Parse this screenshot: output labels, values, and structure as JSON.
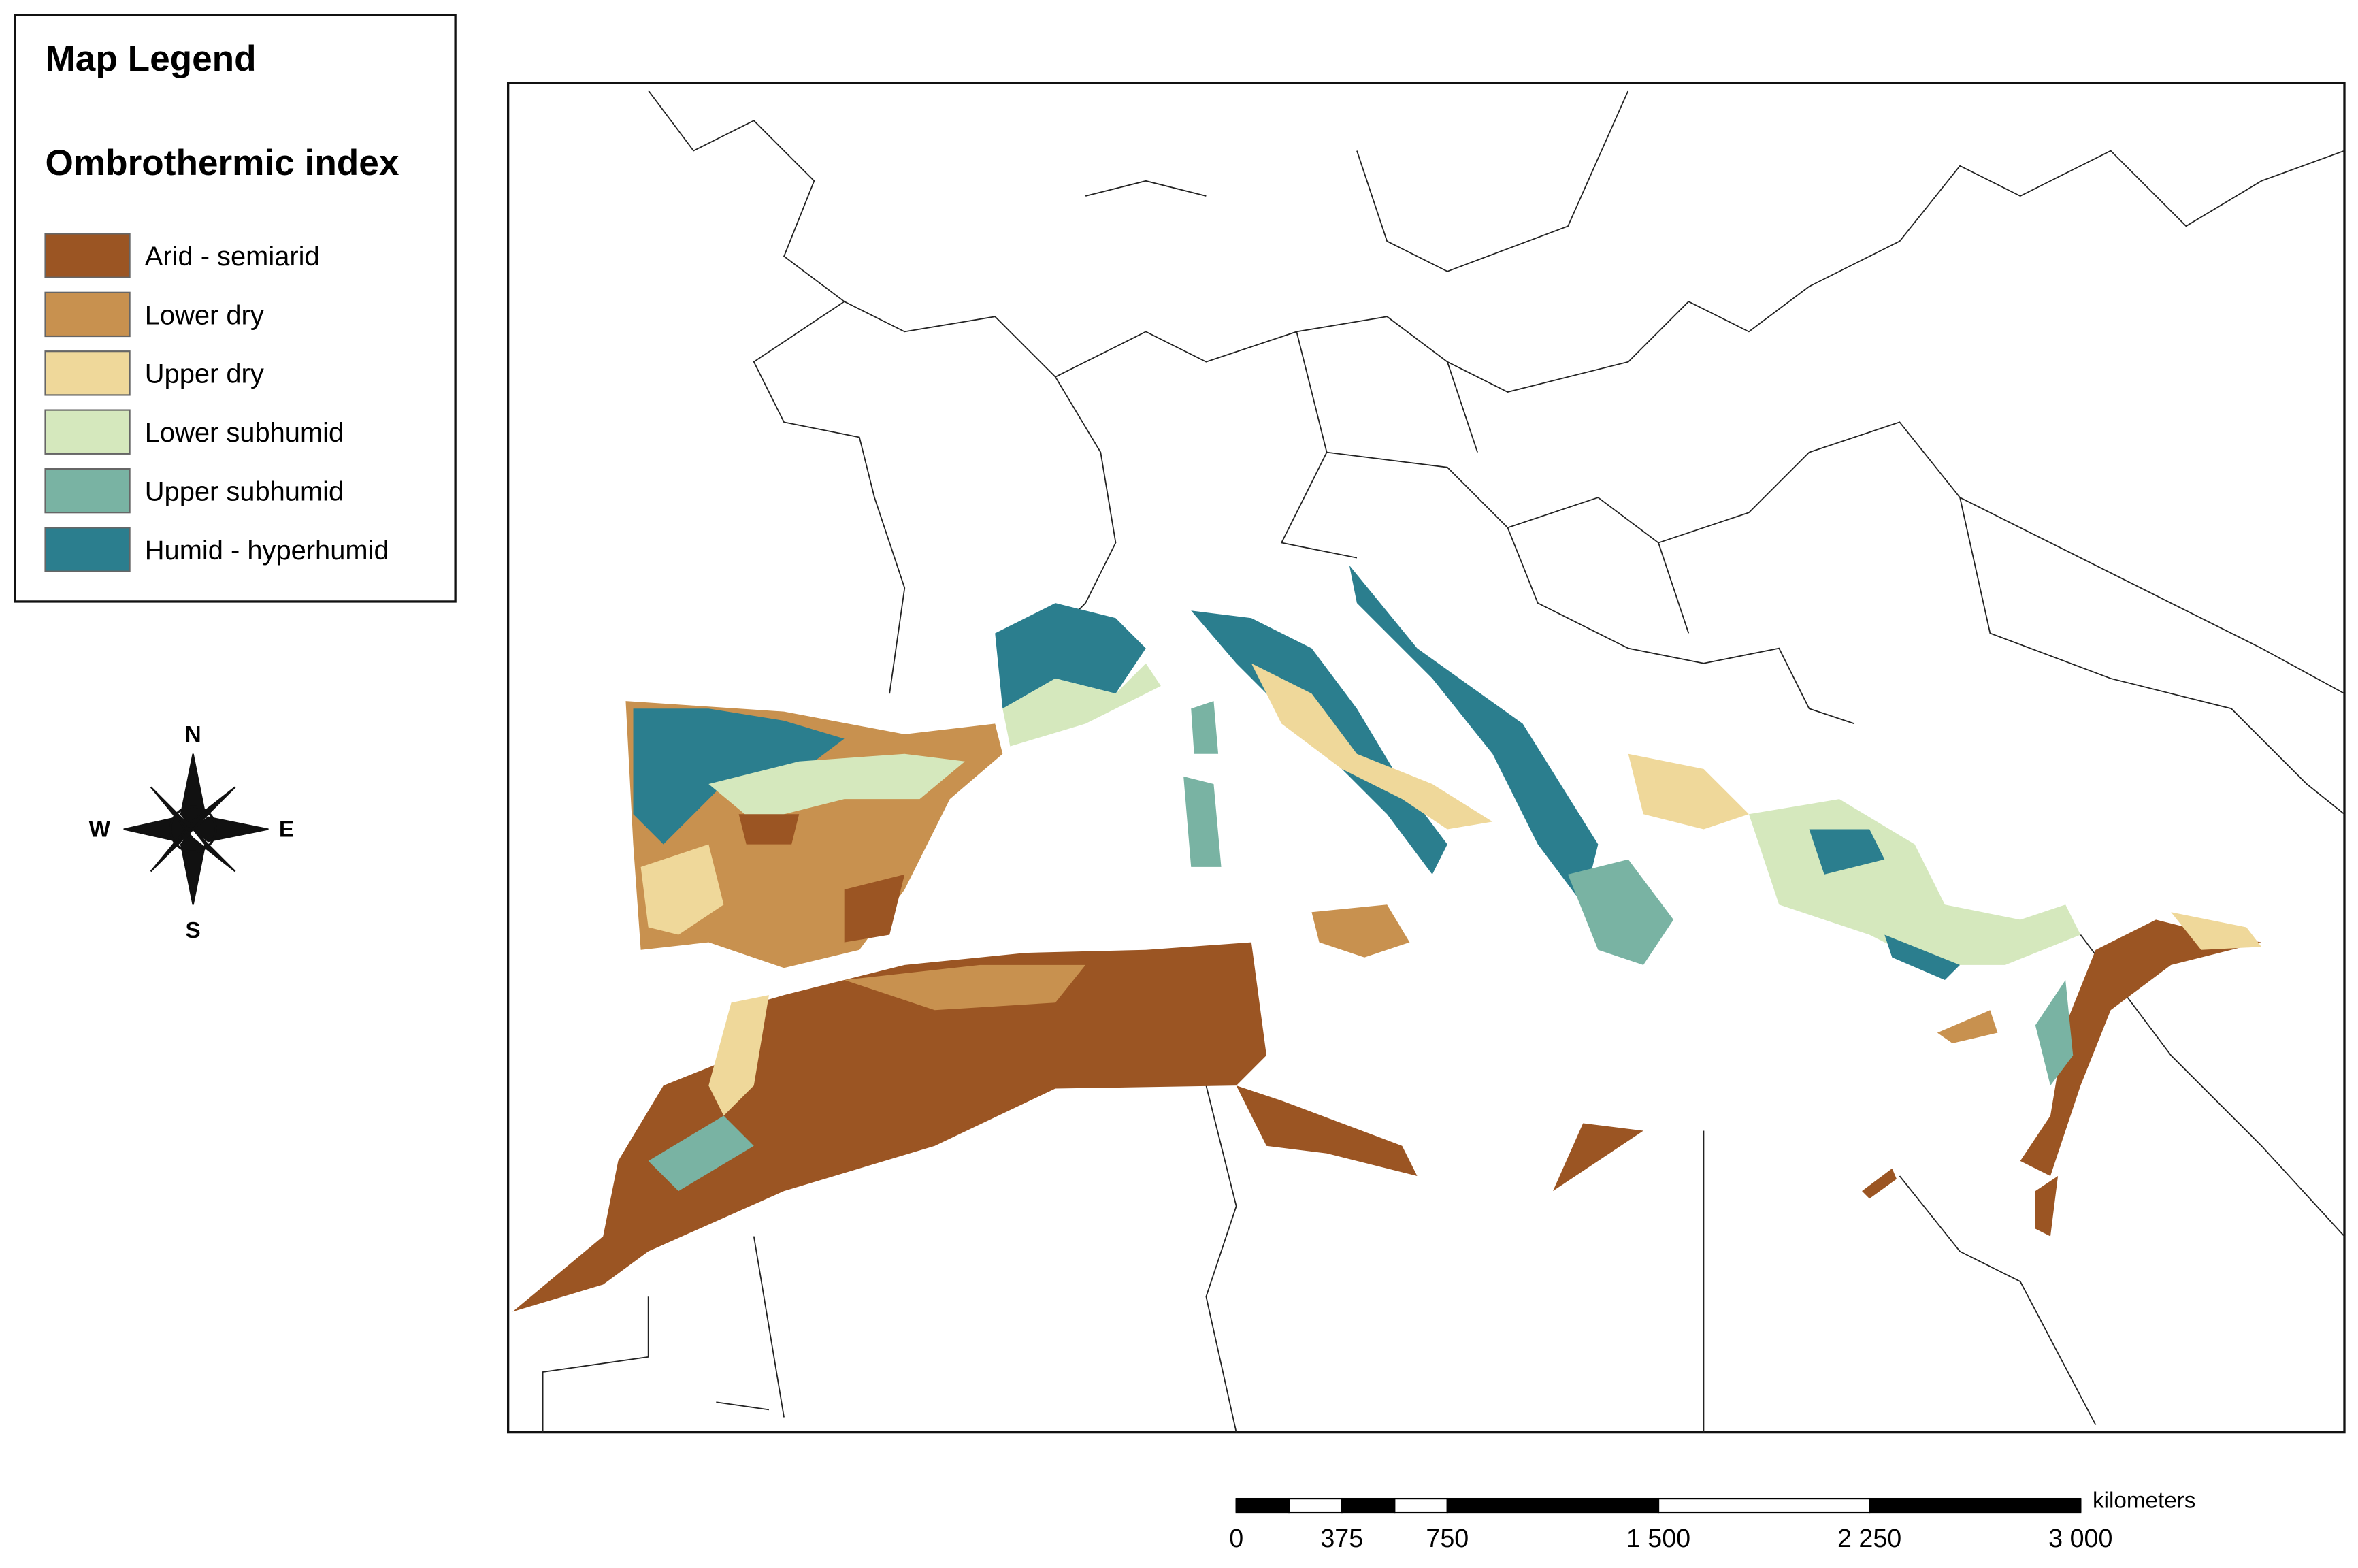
{
  "legend": {
    "title": "Map Legend",
    "subtitle": "Ombrothermic index",
    "items": [
      {
        "label": "Arid - semiarid",
        "color": "#9b5523"
      },
      {
        "label": "Lower dry",
        "color": "#c8914f"
      },
      {
        "label": "Upper dry",
        "color": "#efd89a"
      },
      {
        "label": "Lower subhumid",
        "color": "#d5e8bd"
      },
      {
        "label": "Upper subhumid",
        "color": "#79b3a3"
      },
      {
        "label": "Humid - hyperhumid",
        "color": "#2b7e8e"
      }
    ]
  },
  "compass": {
    "north": "N",
    "south": "S",
    "east": "E",
    "west": "W"
  },
  "scale_bar": {
    "unit": "kilometers",
    "ticks": [
      0,
      375,
      750,
      {
        "value": 1500,
        "label": "1 500"
      },
      {
        "value": 2250,
        "label": "2 250"
      },
      {
        "value": 3000,
        "label": "3 000"
      }
    ]
  }
}
